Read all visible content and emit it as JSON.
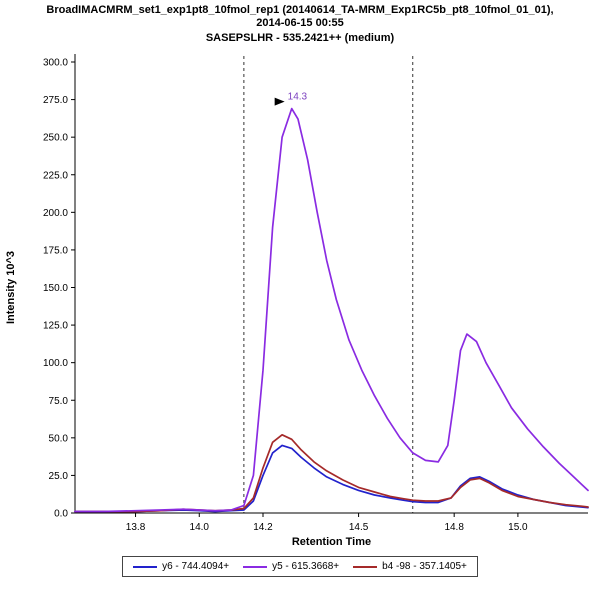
{
  "header": {
    "title_line1": "BroadIMACMRM_set1_exp1pt8_10fmol_rep1 (20140614_TA-MRM_Exp1RC5b_pt8_10fmol_01_01),",
    "title_line2": "2014-06-15 00:55",
    "subtitle": "SASEPSLHR - 535.2421++ (medium)"
  },
  "chart_data": {
    "type": "line",
    "title": "BroadIMACMRM_set1_exp1pt8_10fmol_rep1 (20140614_TA-MRM_Exp1RC5b_pt8_10fmol_01_01), 2014-06-15 00:55",
    "subtitle": "SASEPSLHR - 535.2421++ (medium)",
    "xlabel": "Retention Time",
    "ylabel": "Intensity 10^3",
    "xlim": [
      13.61,
      15.22
    ],
    "ylim": [
      0,
      300
    ],
    "grid": false,
    "legend_position": "bottom",
    "x_ticks": [
      13.8,
      14.0,
      14.2,
      14.5,
      14.8,
      15.0
    ],
    "x_tick_labels": [
      "13.8",
      "14.0",
      "14.2",
      "14.5",
      "14.8",
      "15.0"
    ],
    "y_ticks": [
      0,
      25,
      50,
      75,
      100,
      125,
      150,
      175,
      200,
      225,
      250,
      275,
      300
    ],
    "y_tick_labels": [
      "0.0",
      "25.0",
      "50.0",
      "75.0",
      "100.0",
      "125.0",
      "150.0",
      "175.0",
      "200.0",
      "225.0",
      "250.0",
      "275.0",
      "300.0"
    ],
    "boundaries": [
      14.14,
      14.67
    ],
    "annotation": {
      "text": "14.3",
      "x": 14.29,
      "y": 269,
      "color": "#7b3fbf"
    },
    "series": [
      {
        "name": "y6 - 744.4094+",
        "color": "#2222cc",
        "points": [
          [
            13.61,
            1
          ],
          [
            13.7,
            1
          ],
          [
            13.8,
            1
          ],
          [
            13.88,
            1.5
          ],
          [
            13.95,
            2
          ],
          [
            14.0,
            1.5
          ],
          [
            14.05,
            1
          ],
          [
            14.1,
            1.5
          ],
          [
            14.14,
            2
          ],
          [
            14.17,
            8
          ],
          [
            14.2,
            25
          ],
          [
            14.23,
            40
          ],
          [
            14.26,
            45
          ],
          [
            14.29,
            43
          ],
          [
            14.32,
            37
          ],
          [
            14.36,
            30
          ],
          [
            14.4,
            24
          ],
          [
            14.45,
            19
          ],
          [
            14.5,
            15
          ],
          [
            14.55,
            12
          ],
          [
            14.6,
            10
          ],
          [
            14.64,
            8.5
          ],
          [
            14.67,
            7.5
          ],
          [
            14.71,
            7
          ],
          [
            14.75,
            7
          ],
          [
            14.79,
            10
          ],
          [
            14.82,
            18
          ],
          [
            14.85,
            23
          ],
          [
            14.88,
            24
          ],
          [
            14.91,
            21
          ],
          [
            14.95,
            16
          ],
          [
            15.0,
            12
          ],
          [
            15.05,
            9
          ],
          [
            15.1,
            7
          ],
          [
            15.15,
            5
          ],
          [
            15.2,
            4
          ],
          [
            15.22,
            3.5
          ]
        ]
      },
      {
        "name": "y5 - 615.3668+",
        "color": "#8a2be2",
        "points": [
          [
            13.61,
            1
          ],
          [
            13.7,
            1
          ],
          [
            13.8,
            1.5
          ],
          [
            13.88,
            2
          ],
          [
            13.95,
            2.5
          ],
          [
            14.0,
            2
          ],
          [
            14.05,
            1.5
          ],
          [
            14.1,
            2
          ],
          [
            14.14,
            5
          ],
          [
            14.17,
            25
          ],
          [
            14.2,
            95
          ],
          [
            14.23,
            190
          ],
          [
            14.26,
            250
          ],
          [
            14.29,
            269
          ],
          [
            14.31,
            262
          ],
          [
            14.34,
            235
          ],
          [
            14.37,
            200
          ],
          [
            14.4,
            168
          ],
          [
            14.43,
            142
          ],
          [
            14.47,
            115
          ],
          [
            14.51,
            95
          ],
          [
            14.55,
            78
          ],
          [
            14.59,
            63
          ],
          [
            14.63,
            50
          ],
          [
            14.67,
            40
          ],
          [
            14.71,
            35
          ],
          [
            14.75,
            34
          ],
          [
            14.78,
            45
          ],
          [
            14.8,
            75
          ],
          [
            14.82,
            108
          ],
          [
            14.84,
            119
          ],
          [
            14.87,
            114
          ],
          [
            14.9,
            100
          ],
          [
            14.94,
            85
          ],
          [
            14.98,
            70
          ],
          [
            15.03,
            56
          ],
          [
            15.08,
            44
          ],
          [
            15.13,
            33
          ],
          [
            15.17,
            25
          ],
          [
            15.2,
            19
          ],
          [
            15.22,
            15
          ]
        ]
      },
      {
        "name": "b4 -98 - 357.1405+",
        "color": "#a52a2a",
        "points": [
          [
            13.61,
            1
          ],
          [
            13.7,
            1
          ],
          [
            13.8,
            1
          ],
          [
            13.88,
            1.5
          ],
          [
            13.95,
            2.5
          ],
          [
            14.0,
            2
          ],
          [
            14.05,
            1.5
          ],
          [
            14.1,
            2
          ],
          [
            14.14,
            3
          ],
          [
            14.17,
            10
          ],
          [
            14.2,
            30
          ],
          [
            14.23,
            47
          ],
          [
            14.26,
            52
          ],
          [
            14.29,
            49
          ],
          [
            14.32,
            42
          ],
          [
            14.36,
            34
          ],
          [
            14.4,
            28
          ],
          [
            14.45,
            22
          ],
          [
            14.5,
            17
          ],
          [
            14.55,
            14
          ],
          [
            14.6,
            11
          ],
          [
            14.64,
            9.5
          ],
          [
            14.67,
            8.5
          ],
          [
            14.71,
            8
          ],
          [
            14.75,
            8
          ],
          [
            14.79,
            10
          ],
          [
            14.82,
            17
          ],
          [
            14.85,
            22
          ],
          [
            14.88,
            23
          ],
          [
            14.91,
            20
          ],
          [
            14.95,
            15
          ],
          [
            15.0,
            11
          ],
          [
            15.05,
            9
          ],
          [
            15.1,
            7
          ],
          [
            15.15,
            5.5
          ],
          [
            15.2,
            4.5
          ],
          [
            15.22,
            4
          ]
        ]
      }
    ]
  }
}
